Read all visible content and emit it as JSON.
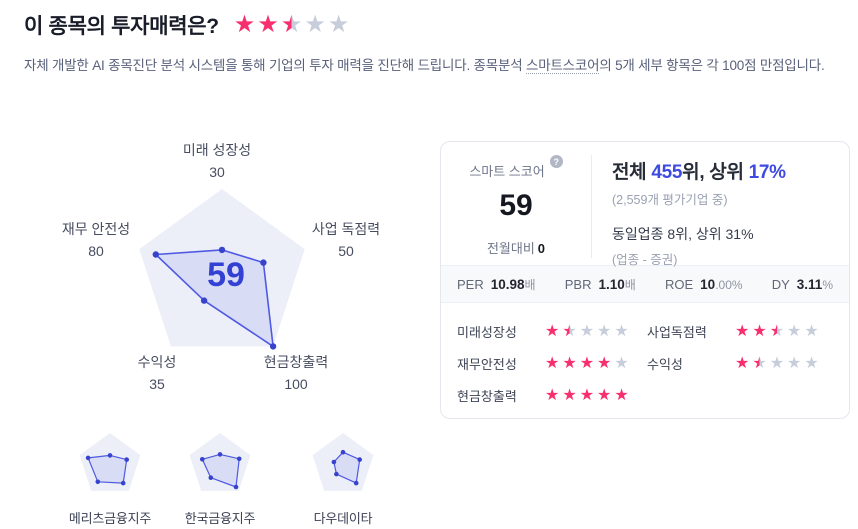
{
  "colors": {
    "star_pink": "#f72f6e",
    "star_gray": "#c7cdda",
    "accent_blue": "#3e4ae0",
    "score_blue": "#3340d4",
    "radar_bg": "#edeff8",
    "radar_fill": "rgba(79,90,226,0.13)",
    "radar_stroke": "#4f5ae2",
    "radar_dot": "#3743cd"
  },
  "header": {
    "title": "이 종목의 투자매력은?",
    "rating_stars": 2.5,
    "subtitle_before": "자체 개발한 AI 종목진단 분석 시스템을 통해 기업의 투자 매력을 진단해 드립니다. 종목분석 ",
    "subtitle_term": "스마트스코어",
    "subtitle_after": "의 5개 세부 항목은 각 100점 만점입니다."
  },
  "chart_data": [
    {
      "type": "radar",
      "title": "스마트스코어 세부 항목",
      "categories": [
        "미래 성장성",
        "사업 독점력",
        "현금창출력",
        "수익성",
        "재무 안전성"
      ],
      "values": [
        30,
        50,
        100,
        35,
        80
      ],
      "range": [
        0,
        100
      ],
      "center_label": "59"
    },
    {
      "type": "radar",
      "name": "메리츠금융지주",
      "categories": [
        "미래 성장성",
        "사업 독점력",
        "현금창출력",
        "수익성",
        "재무 안전성"
      ],
      "values": [
        30,
        55,
        70,
        65,
        72
      ],
      "range": [
        0,
        100
      ]
    },
    {
      "type": "radar",
      "name": "한국금융지주",
      "categories": [
        "미래 성장성",
        "사업 독점력",
        "현금창출력",
        "수익성",
        "재무 안전성"
      ],
      "values": [
        33,
        63,
        85,
        49,
        58
      ],
      "range": [
        0,
        100
      ]
    },
    {
      "type": "radar",
      "name": "다우데이타",
      "categories": [
        "미래 성장성",
        "사업 독점력",
        "현금창출력",
        "수익성",
        "재무 안전성"
      ],
      "values": [
        40,
        55,
        70,
        35,
        30
      ],
      "range": [
        0,
        100
      ]
    }
  ],
  "score_card": {
    "score_label": "스마트 스코어",
    "help_icon_glyph": "?",
    "score": "59",
    "mom_label": "전월대비",
    "mom_value": "0",
    "rank_p1": "전체 ",
    "rank_value": "455",
    "rank_p2": "위, 상위 ",
    "rank_pct": "17%",
    "rank_sub": "(2,559개 평가기업 중)",
    "industry_line": "동일업종 8위, 상위 31%",
    "industry_sub": "(업종 - 증권)",
    "metrics": [
      {
        "label": "PER",
        "value": "10.98",
        "suffix": "배"
      },
      {
        "label": "PBR",
        "value": "1.10",
        "suffix": "배"
      },
      {
        "label": "ROE",
        "value": "10",
        "suffix": ".00%"
      },
      {
        "label": "DY",
        "value": "3.11",
        "suffix": "%"
      }
    ],
    "ratings": [
      {
        "label": "미래성장성",
        "stars": 1.5
      },
      {
        "label": "사업독점력",
        "stars": 2.5
      },
      {
        "label": "재무안전성",
        "stars": 4
      },
      {
        "label": "수익성",
        "stars": 1.5
      },
      {
        "label": "현금창출력",
        "stars": 5
      }
    ]
  }
}
